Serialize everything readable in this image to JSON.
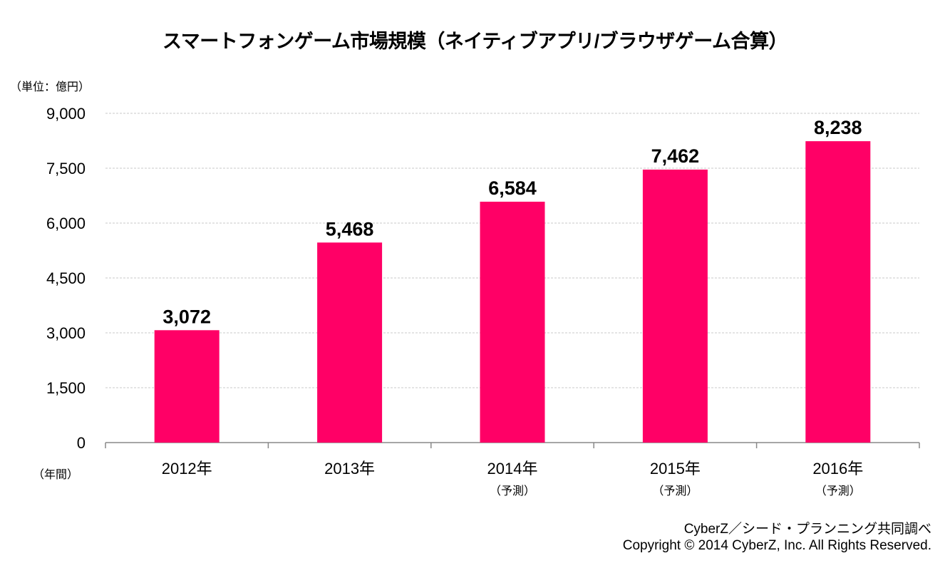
{
  "chart_data": {
    "type": "bar",
    "title": "スマートフォンゲーム市場規模（ネイティブアプリ/ブラウザゲーム合算）",
    "ylabel": "（単位：億円）",
    "xlabel": "（年間）",
    "categories": [
      "2012年",
      "2013年",
      "2014年",
      "2015年",
      "2016年"
    ],
    "category_notes": [
      "",
      "",
      "（予測）",
      "（予測）",
      "（予測）"
    ],
    "values": [
      3072,
      5468,
      6584,
      7462,
      8238
    ],
    "data_labels": [
      "3,072",
      "5,468",
      "6,584",
      "7,462",
      "8,238"
    ],
    "ylim": [
      0,
      9000
    ],
    "yticks": [
      0,
      1500,
      3000,
      4500,
      6000,
      7500,
      9000
    ],
    "ytick_labels": [
      "0",
      "1,500",
      "3,000",
      "4,500",
      "6,000",
      "7,500",
      "9,000"
    ],
    "grid": "horizontal dashed",
    "legend": "none",
    "bar_color": "#FF0066"
  },
  "footer": {
    "source": "CyberZ／シード・プランニング共同調べ",
    "copyright": "Copyright © 2014 CyberZ, Inc.  All Rights Reserved."
  }
}
